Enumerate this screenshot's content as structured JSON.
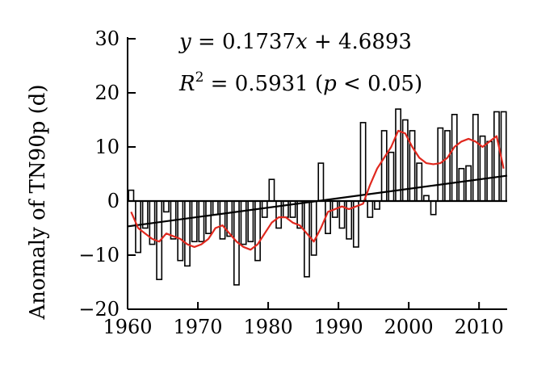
{
  "chart_data": {
    "type": "bar",
    "ylabel": "Anomaly of TN90p (d)",
    "xlim": [
      1960,
      2014
    ],
    "ylim": [
      -20,
      30
    ],
    "xticks": [
      1960,
      1970,
      1980,
      1990,
      2000,
      2010
    ],
    "yticks": [
      -20,
      -10,
      0,
      10,
      20,
      30
    ],
    "x": [
      1960,
      1961,
      1962,
      1963,
      1964,
      1965,
      1966,
      1967,
      1968,
      1969,
      1970,
      1971,
      1972,
      1973,
      1974,
      1975,
      1976,
      1977,
      1978,
      1979,
      1980,
      1981,
      1982,
      1983,
      1984,
      1985,
      1986,
      1987,
      1988,
      1989,
      1990,
      1991,
      1992,
      1993,
      1994,
      1995,
      1996,
      1997,
      1998,
      1999,
      2000,
      2001,
      2002,
      2003,
      2004,
      2005,
      2006,
      2007,
      2008,
      2009,
      2010,
      2011,
      2012,
      2013
    ],
    "values": [
      2,
      -9.5,
      -5,
      -8,
      -14.5,
      -2,
      -7,
      -11,
      -12,
      -7.5,
      -7.5,
      -6,
      -2.5,
      -7,
      -6.5,
      -15.5,
      -8,
      -7.5,
      -11,
      -3,
      4,
      -5,
      -3,
      -3,
      -5,
      -14,
      -10,
      7,
      -6,
      -3,
      -5,
      -7,
      -8.5,
      14.5,
      -3,
      -1.5,
      13,
      9,
      17,
      15,
      13,
      7,
      1,
      -2.5,
      13.5,
      13,
      16,
      6,
      6.5,
      16,
      12,
      11,
      16.5,
      16.5
    ],
    "smoothed": [
      -2,
      -5,
      -6,
      -7,
      -7.5,
      -6,
      -6.5,
      -7,
      -8,
      -8.5,
      -8,
      -7,
      -5,
      -4.5,
      -6,
      -7.5,
      -8.5,
      -9,
      -8,
      -6,
      -4,
      -3,
      -3,
      -4,
      -4.5,
      -6,
      -7.5,
      -5,
      -2,
      -1.5,
      -1,
      -1.5,
      -1,
      -0.5,
      3,
      6,
      8,
      10,
      13,
      12.5,
      10,
      8,
      7,
      6.8,
      7,
      8,
      10,
      11,
      11.5,
      11,
      10,
      11,
      12,
      6
    ],
    "trend": {
      "slope": 0.1737,
      "intercept": 4.6893,
      "x_ref": 1987
    },
    "annotations": [
      "y = 0.1737x + 4.6893",
      "R2 = 0.5931 (p < 0.05)"
    ],
    "grid": false,
    "colors": {
      "bars": "#000000",
      "bar_fill": "#ffffff",
      "smoothed": "#e0281e",
      "trend": "#000000"
    }
  }
}
